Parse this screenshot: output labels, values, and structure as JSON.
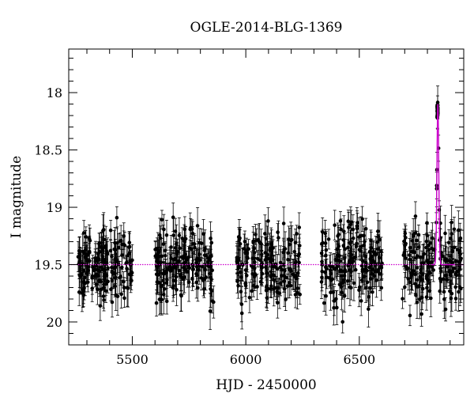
{
  "chart_data": {
    "type": "scatter",
    "title": "OGLE-2014-BLG-1369",
    "xlabel": "HJD - 2450000",
    "ylabel": "I magnitude",
    "xlim": [
      5220,
      6960
    ],
    "ylim": [
      20.2,
      17.62
    ],
    "y_inverted": true,
    "grid": false,
    "x_ticks": [
      5500,
      6000,
      6500
    ],
    "x_tick_labels": [
      "5500",
      "6000",
      "6500"
    ],
    "y_ticks": [
      18,
      18.5,
      19,
      19.5,
      20
    ],
    "y_tick_labels": [
      "18",
      "18.5",
      "19",
      "19.5",
      "20"
    ],
    "baseline_magnitude": 19.5,
    "seasons": [
      {
        "start": 5260,
        "end": 5500,
        "mean_mag": 19.5,
        "scatter": 0.17
      },
      {
        "start": 5600,
        "end": 5860,
        "mean_mag": 19.5,
        "scatter": 0.17
      },
      {
        "start": 5960,
        "end": 6240,
        "mean_mag": 19.5,
        "scatter": 0.17
      },
      {
        "start": 6330,
        "end": 6600,
        "mean_mag": 19.5,
        "scatter": 0.17
      },
      {
        "start": 6690,
        "end": 6950,
        "mean_mag": 19.5,
        "scatter": 0.17
      }
    ],
    "peak": {
      "x": 6846,
      "magnitude": 18.1,
      "width_days": 4
    },
    "series": [
      {
        "kind": "points",
        "color": "#000000",
        "error_bars": true
      },
      {
        "kind": "model",
        "color": "#cc00cc",
        "linestyle": "dotted-then-solid"
      }
    ]
  }
}
